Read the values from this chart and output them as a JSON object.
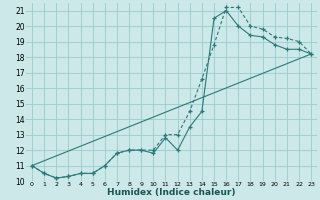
{
  "xlabel": "Humidex (Indice chaleur)",
  "background_color": "#cce8e8",
  "grid_color": "#99cccc",
  "line_color": "#2a7a7a",
  "xlim": [
    -0.5,
    23.5
  ],
  "ylim": [
    10,
    21.5
  ],
  "x_ticks": [
    0,
    1,
    2,
    3,
    4,
    5,
    6,
    7,
    8,
    9,
    10,
    11,
    12,
    13,
    14,
    15,
    16,
    17,
    18,
    19,
    20,
    21,
    22,
    23
  ],
  "y_ticks": [
    10,
    11,
    12,
    13,
    14,
    15,
    16,
    17,
    18,
    19,
    20,
    21
  ],
  "curve_dashed_x": [
    0,
    1,
    2,
    3,
    4,
    5,
    6,
    7,
    8,
    9,
    10,
    11,
    12,
    13,
    14,
    15,
    16,
    17,
    18,
    19,
    20,
    21,
    22,
    23
  ],
  "curve_dashed_y": [
    11.0,
    10.5,
    10.2,
    10.3,
    10.5,
    10.5,
    11.0,
    11.8,
    12.0,
    12.0,
    12.0,
    13.0,
    13.0,
    14.5,
    16.6,
    18.8,
    21.2,
    21.2,
    20.0,
    19.8,
    19.3,
    19.2,
    19.0,
    18.2
  ],
  "curve_solid_x": [
    0,
    1,
    2,
    3,
    4,
    5,
    6,
    7,
    8,
    9,
    10,
    11,
    12,
    13,
    14,
    15,
    16,
    17,
    18,
    19,
    20,
    21,
    22,
    23
  ],
  "curve_solid_y": [
    11.0,
    10.5,
    10.2,
    10.3,
    10.5,
    10.5,
    11.0,
    11.8,
    12.0,
    12.0,
    11.8,
    12.8,
    12.0,
    13.5,
    14.5,
    20.5,
    21.0,
    20.0,
    19.4,
    19.3,
    18.8,
    18.5,
    18.5,
    18.2
  ],
  "curve_line_x": [
    0,
    23
  ],
  "curve_line_y": [
    11.0,
    18.2
  ]
}
